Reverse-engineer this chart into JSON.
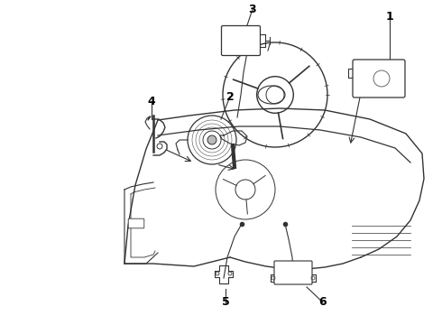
{
  "bg_color": "#ffffff",
  "line_color": "#333333",
  "label_color": "#000000",
  "figsize": [
    4.9,
    3.6
  ],
  "dpi": 100
}
